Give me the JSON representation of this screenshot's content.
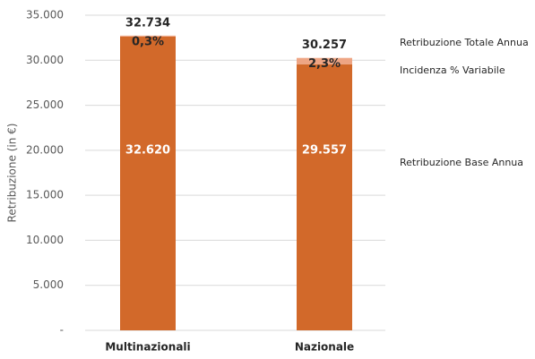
{
  "chart_data": {
    "type": "stacked_bar",
    "y_label": "Retribuzione (in €)",
    "categories": [
      "Multinazionali",
      "Nazionale"
    ],
    "series": [
      {
        "name": "Retribuzione Base Annua",
        "color": "#d2692a",
        "values": [
          32620,
          29557
        ],
        "value_labels": [
          "32.620",
          "29.557"
        ]
      },
      {
        "color": "#eea584",
        "values": [
          114,
          700
        ]
      }
    ],
    "totals": {
      "name": "Retribuzione Totale Annua",
      "values": [
        32734,
        30257
      ],
      "value_labels": [
        "32.734",
        "30.257"
      ]
    },
    "share": {
      "name": "Incidenza % Variabile",
      "values": [
        0.3,
        2.3
      ],
      "value_labels": [
        "0,3%",
        "2,3%"
      ]
    },
    "ylim": [
      0,
      35000
    ],
    "yticks": [
      {
        "value": 0,
        "label": "-"
      },
      {
        "value": 5000,
        "label": "5.000"
      },
      {
        "value": 10000,
        "label": "10.000"
      },
      {
        "value": 15000,
        "label": "15.000"
      },
      {
        "value": 20000,
        "label": "20.000"
      },
      {
        "value": 25000,
        "label": "25.000"
      },
      {
        "value": 30000,
        "label": "30.000"
      },
      {
        "value": 35000,
        "label": "35.000"
      }
    ],
    "grid": true
  }
}
